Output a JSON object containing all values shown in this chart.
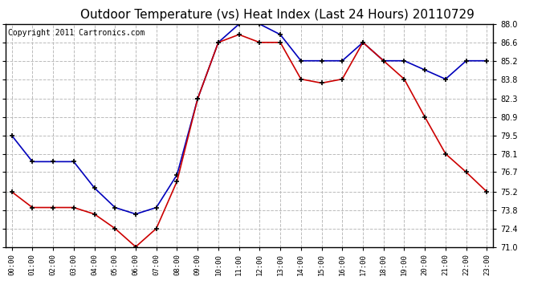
{
  "title": "Outdoor Temperature (vs) Heat Index (Last 24 Hours) 20110729",
  "copyright": "Copyright 2011 Cartronics.com",
  "x_labels": [
    "00:00",
    "01:00",
    "02:00",
    "03:00",
    "04:00",
    "05:00",
    "06:00",
    "07:00",
    "08:00",
    "09:00",
    "10:00",
    "11:00",
    "12:00",
    "13:00",
    "14:00",
    "15:00",
    "16:00",
    "17:00",
    "18:00",
    "19:00",
    "20:00",
    "21:00",
    "22:00",
    "23:00"
  ],
  "blue_data": [
    79.5,
    77.5,
    77.5,
    77.5,
    75.5,
    74.0,
    73.5,
    74.0,
    76.5,
    82.3,
    86.6,
    88.0,
    88.0,
    87.2,
    85.2,
    85.2,
    85.2,
    86.6,
    85.2,
    85.2,
    84.5,
    83.8,
    85.2,
    85.2
  ],
  "red_data": [
    75.2,
    74.0,
    74.0,
    74.0,
    73.5,
    72.4,
    71.0,
    72.4,
    76.0,
    82.3,
    86.6,
    87.2,
    86.6,
    86.6,
    83.8,
    83.5,
    83.8,
    86.6,
    85.2,
    83.8,
    80.9,
    78.1,
    76.7,
    75.2
  ],
  "ylim": [
    71.0,
    88.0
  ],
  "yticks": [
    71.0,
    72.4,
    73.8,
    75.2,
    76.7,
    78.1,
    79.5,
    80.9,
    82.3,
    83.8,
    85.2,
    86.6,
    88.0
  ],
  "blue_color": "#0000bb",
  "red_color": "#cc0000",
  "bg_color": "#ffffff",
  "grid_color": "#bbbbbb",
  "title_color": "#000000",
  "title_fontsize": 11,
  "copyright_fontsize": 7
}
